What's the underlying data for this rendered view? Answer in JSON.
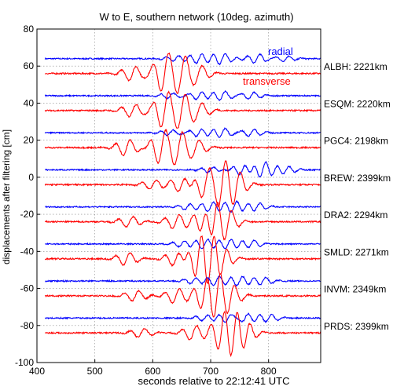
{
  "chart_data": {
    "type": "line",
    "title": "W to E, southern network (10deg. azimuth)",
    "xlabel": "seconds relative to 22:12:41 UTC",
    "ylabel": "displacements after filtering [cm]",
    "xlim": [
      400,
      890
    ],
    "ylim": [
      -100,
      80
    ],
    "xticks": [
      400,
      500,
      600,
      700,
      800
    ],
    "yticks": [
      80,
      60,
      40,
      20,
      0,
      -20,
      -40,
      -60,
      -80,
      -100
    ],
    "grid": true,
    "legend": [
      {
        "name": "radial",
        "color": "#0000ff"
      },
      {
        "name": "transverse",
        "color": "#ff0000"
      }
    ],
    "stations": [
      {
        "label": "ALBH: 2221km",
        "radial_baseline": 64,
        "transverse_baseline": 56,
        "radial_peaks": [
          [
            640,
            1.5,
            22
          ],
          [
            680,
            2.5,
            22
          ],
          [
            720,
            3.0,
            22
          ],
          [
            780,
            2.5,
            22
          ],
          [
            830,
            1.5,
            22
          ]
        ],
        "transverse_peaks": [
          [
            565,
            4.0,
            22
          ],
          [
            620,
            10.0,
            22
          ],
          [
            650,
            9.0,
            22
          ],
          [
            680,
            4.0,
            22
          ]
        ]
      },
      {
        "label": "ESQM: 2220km",
        "radial_baseline": 44,
        "transverse_baseline": 36,
        "radial_peaks": [
          [
            630,
            1.5,
            22
          ],
          [
            680,
            2.0,
            22
          ],
          [
            720,
            2.5,
            22
          ],
          [
            770,
            2.0,
            22
          ]
        ],
        "transverse_peaks": [
          [
            565,
            3.5,
            22
          ],
          [
            620,
            9.0,
            22
          ],
          [
            650,
            8.5,
            22
          ],
          [
            680,
            4.0,
            22
          ]
        ]
      },
      {
        "label": "PGC4: 2198km",
        "radial_baseline": 24,
        "transverse_baseline": 16,
        "radial_peaks": [
          [
            630,
            1.5,
            22
          ],
          [
            680,
            2.0,
            22
          ],
          [
            720,
            2.5,
            22
          ],
          [
            770,
            2.0,
            22
          ]
        ],
        "transverse_peaks": [
          [
            555,
            4.5,
            22
          ],
          [
            615,
            8.5,
            22
          ],
          [
            645,
            8.0,
            22
          ],
          [
            675,
            4.0,
            22
          ]
        ]
      },
      {
        "label": "BREW: 2399km",
        "radial_baseline": 4,
        "transverse_baseline": -4,
        "radial_peaks": [
          [
            700,
            1.5,
            22
          ],
          [
            755,
            3.0,
            22
          ],
          [
            790,
            4.5,
            22
          ],
          [
            830,
            2.0,
            22
          ]
        ],
        "transverse_peaks": [
          [
            600,
            2.5,
            22
          ],
          [
            650,
            4.0,
            22
          ],
          [
            690,
            7.0,
            22
          ],
          [
            720,
            10.5,
            22
          ],
          [
            745,
            6.0,
            22
          ]
        ]
      },
      {
        "label": "DRA2: 2294km",
        "radial_baseline": -16,
        "transverse_baseline": -24,
        "radial_peaks": [
          [
            660,
            1.5,
            22
          ],
          [
            700,
            2.5,
            22
          ],
          [
            740,
            3.0,
            22
          ],
          [
            780,
            2.0,
            22
          ]
        ],
        "transverse_peaks": [
          [
            560,
            3.0,
            22
          ],
          [
            640,
            4.0,
            22
          ],
          [
            690,
            9.0,
            22
          ],
          [
            705,
            12.0,
            22
          ],
          [
            730,
            5.0,
            22
          ]
        ]
      },
      {
        "label": "SMLD: 2271km",
        "radial_baseline": -36,
        "transverse_baseline": -44,
        "radial_peaks": [
          [
            650,
            1.5,
            22
          ],
          [
            690,
            2.5,
            22
          ],
          [
            730,
            2.5,
            22
          ],
          [
            770,
            2.0,
            22
          ]
        ],
        "transverse_peaks": [
          [
            555,
            3.5,
            22
          ],
          [
            640,
            4.0,
            22
          ],
          [
            680,
            10.0,
            22
          ],
          [
            700,
            12.0,
            22
          ],
          [
            720,
            5.0,
            22
          ]
        ]
      },
      {
        "label": "INVM: 2349km",
        "radial_baseline": -56,
        "transverse_baseline": -64,
        "radial_peaks": [
          [
            670,
            1.5,
            22
          ],
          [
            710,
            2.5,
            22
          ],
          [
            750,
            2.5,
            22
          ],
          [
            790,
            2.0,
            22
          ]
        ],
        "transverse_peaks": [
          [
            570,
            3.0,
            22
          ],
          [
            640,
            4.0,
            22
          ],
          [
            690,
            7.0,
            22
          ],
          [
            710,
            10.0,
            22
          ],
          [
            735,
            5.0,
            22
          ]
        ]
      },
      {
        "label": "PRDS: 2399km",
        "radial_baseline": -76,
        "transverse_baseline": -84,
        "radial_peaks": [
          [
            690,
            1.5,
            22
          ],
          [
            730,
            2.5,
            22
          ],
          [
            760,
            2.5,
            22
          ],
          [
            800,
            2.0,
            22
          ]
        ],
        "transverse_peaks": [
          [
            580,
            2.5,
            22
          ],
          [
            670,
            4.0,
            22
          ],
          [
            720,
            9.0,
            22
          ],
          [
            740,
            11.0,
            22
          ],
          [
            760,
            5.0,
            22
          ]
        ]
      }
    ]
  },
  "colors": {
    "radial": "#0000ff",
    "transverse": "#ff0000",
    "grid": "#888888",
    "axis": "#000000"
  }
}
